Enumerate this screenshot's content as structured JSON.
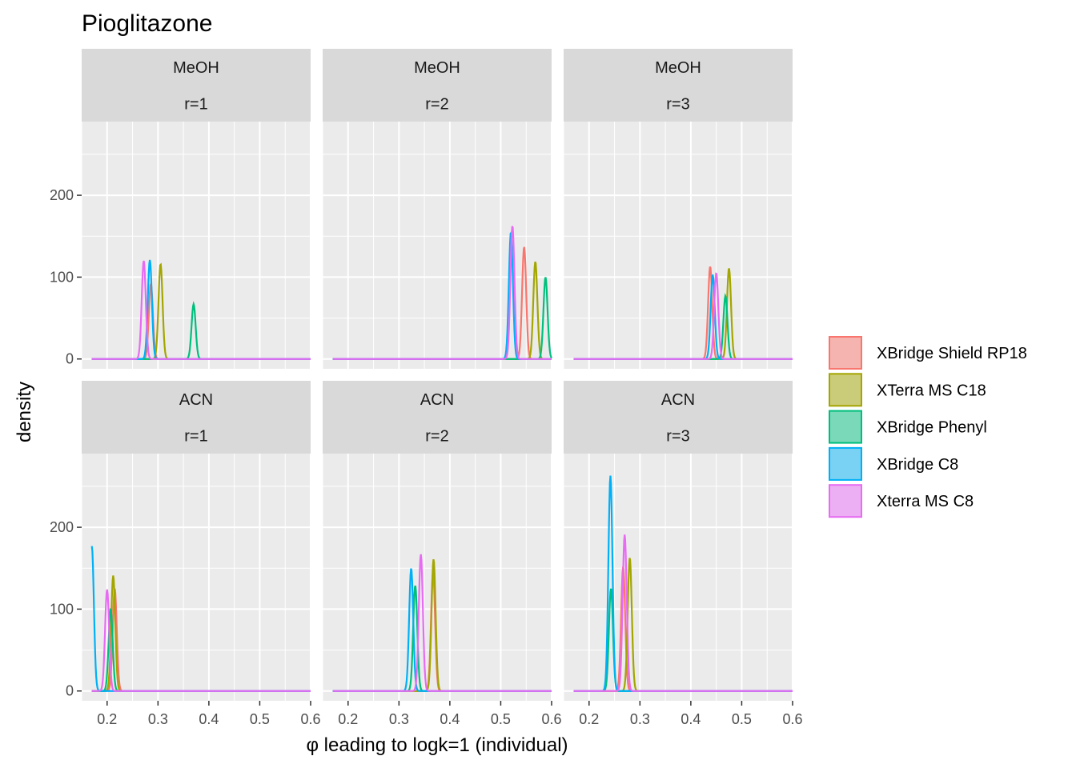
{
  "chart_data": {
    "type": "line",
    "title": "Pioglitazone",
    "xlabel": "φ leading to logk=1 (individual)",
    "ylabel": "density",
    "xlim": [
      0.15,
      0.6
    ],
    "ylim": [
      -12,
      290
    ],
    "x_ticks": [
      0.2,
      0.3,
      0.4,
      0.5,
      0.6
    ],
    "x_tick_labels": [
      "0.2",
      "0.3",
      "0.4",
      "0.5",
      "0.6"
    ],
    "y_ticks": [
      0,
      100,
      200
    ],
    "y_tick_labels": [
      "0",
      "100",
      "200"
    ],
    "grid": true,
    "legend_position": "right",
    "density_range": [
      0.17,
      0.6
    ],
    "legend": [
      {
        "name": "XBridge Shield RP18",
        "color": "#F8766D"
      },
      {
        "name": "XTerra MS C18",
        "color": "#A3A500"
      },
      {
        "name": "XBridge Phenyl",
        "color": "#00BF7D"
      },
      {
        "name": "XBridge C8",
        "color": "#00B0F6"
      },
      {
        "name": "Xterra MS C8",
        "color": "#E76BF3"
      }
    ],
    "panels": [
      {
        "strip_top": "MeOH",
        "strip_bottom": "r=1",
        "peaks": [
          {
            "series": "XBridge Shield RP18",
            "center": 0.286,
            "height": 92
          },
          {
            "series": "XTerra MS C18",
            "center": 0.305,
            "height": 116
          },
          {
            "series": "XBridge Phenyl",
            "center": 0.37,
            "height": 67
          },
          {
            "series": "XBridge C8",
            "center": 0.284,
            "height": 121
          },
          {
            "series": "Xterra MS C8",
            "center": 0.272,
            "height": 120
          }
        ]
      },
      {
        "strip_top": "MeOH",
        "strip_bottom": "r=2",
        "peaks": [
          {
            "series": "XBridge Shield RP18",
            "center": 0.546,
            "height": 137
          },
          {
            "series": "XTerra MS C18",
            "center": 0.568,
            "height": 119
          },
          {
            "series": "XBridge Phenyl",
            "center": 0.588,
            "height": 100
          },
          {
            "series": "XBridge C8",
            "center": 0.52,
            "height": 155
          },
          {
            "series": "Xterra MS C8",
            "center": 0.523,
            "height": 163
          }
        ]
      },
      {
        "strip_top": "MeOH",
        "strip_bottom": "r=3",
        "peaks": [
          {
            "series": "XBridge Shield RP18",
            "center": 0.438,
            "height": 113
          },
          {
            "series": "XTerra MS C18",
            "center": 0.475,
            "height": 111
          },
          {
            "series": "XBridge Phenyl",
            "center": 0.468,
            "height": 77
          },
          {
            "series": "XBridge C8",
            "center": 0.443,
            "height": 103
          },
          {
            "series": "Xterra MS C8",
            "center": 0.45,
            "height": 105
          }
        ]
      },
      {
        "strip_top": "ACN",
        "strip_bottom": "r=1",
        "peaks": [
          {
            "series": "XBridge Shield RP18",
            "center": 0.215,
            "height": 125
          },
          {
            "series": "XTerra MS C18",
            "center": 0.212,
            "height": 141
          },
          {
            "series": "XBridge Phenyl",
            "center": 0.207,
            "height": 100
          },
          {
            "series": "XBridge C8",
            "center": 0.17,
            "height": 177
          },
          {
            "series": "Xterra MS C8",
            "center": 0.2,
            "height": 124
          }
        ]
      },
      {
        "strip_top": "ACN",
        "strip_bottom": "r=2",
        "peaks": [
          {
            "series": "XBridge Shield RP18",
            "center": 0.367,
            "height": 145
          },
          {
            "series": "XTerra MS C18",
            "center": 0.368,
            "height": 161
          },
          {
            "series": "XBridge Phenyl",
            "center": 0.332,
            "height": 129
          },
          {
            "series": "XBridge C8",
            "center": 0.324,
            "height": 150
          },
          {
            "series": "Xterra MS C8",
            "center": 0.343,
            "height": 167
          }
        ]
      },
      {
        "strip_top": "ACN",
        "strip_bottom": "r=3",
        "peaks": [
          {
            "series": "XBridge Shield RP18",
            "center": 0.267,
            "height": 152
          },
          {
            "series": "XTerra MS C18",
            "center": 0.28,
            "height": 163
          },
          {
            "series": "XBridge Phenyl",
            "center": 0.243,
            "height": 125
          },
          {
            "series": "XBridge C8",
            "center": 0.242,
            "height": 263
          },
          {
            "series": "Xterra MS C8",
            "center": 0.27,
            "height": 191
          }
        ]
      }
    ]
  }
}
